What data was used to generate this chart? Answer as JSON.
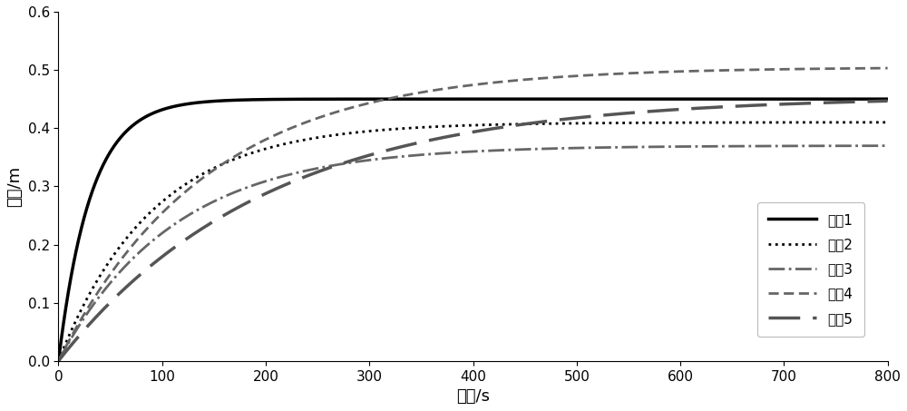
{
  "title": "",
  "xlabel": "时间/s",
  "ylabel": "水位/m",
  "xlim": [
    0,
    800
  ],
  "ylim": [
    0,
    0.6
  ],
  "xticks": [
    0,
    100,
    200,
    300,
    400,
    500,
    600,
    700,
    800
  ],
  "yticks": [
    0.0,
    0.1,
    0.2,
    0.3,
    0.4,
    0.5,
    0.6
  ],
  "curves": [
    {
      "label": "单元1",
      "linestyle_key": "solid",
      "color": "#000000",
      "linewidth": 2.5,
      "asymptote": 0.45,
      "rate": 0.032
    },
    {
      "label": "单元2",
      "linestyle_key": "dotted",
      "color": "#000000",
      "linewidth": 2.0,
      "asymptote": 0.41,
      "rate": 0.011
    },
    {
      "label": "单元3",
      "linestyle_key": "dashdot",
      "color": "#666666",
      "linewidth": 2.0,
      "asymptote": 0.37,
      "rate": 0.009
    },
    {
      "label": "单元4",
      "linestyle_key": "densedash",
      "color": "#666666",
      "linewidth": 2.0,
      "asymptote": 0.505,
      "rate": 0.007
    },
    {
      "label": "单元5",
      "linestyle_key": "longdash",
      "color": "#555555",
      "linewidth": 2.5,
      "asymptote": 0.455,
      "rate": 0.005
    }
  ],
  "legend_loc": "lower right",
  "background_color": "#ffffff",
  "figure_width": 10.0,
  "figure_height": 4.53,
  "dpi": 100
}
